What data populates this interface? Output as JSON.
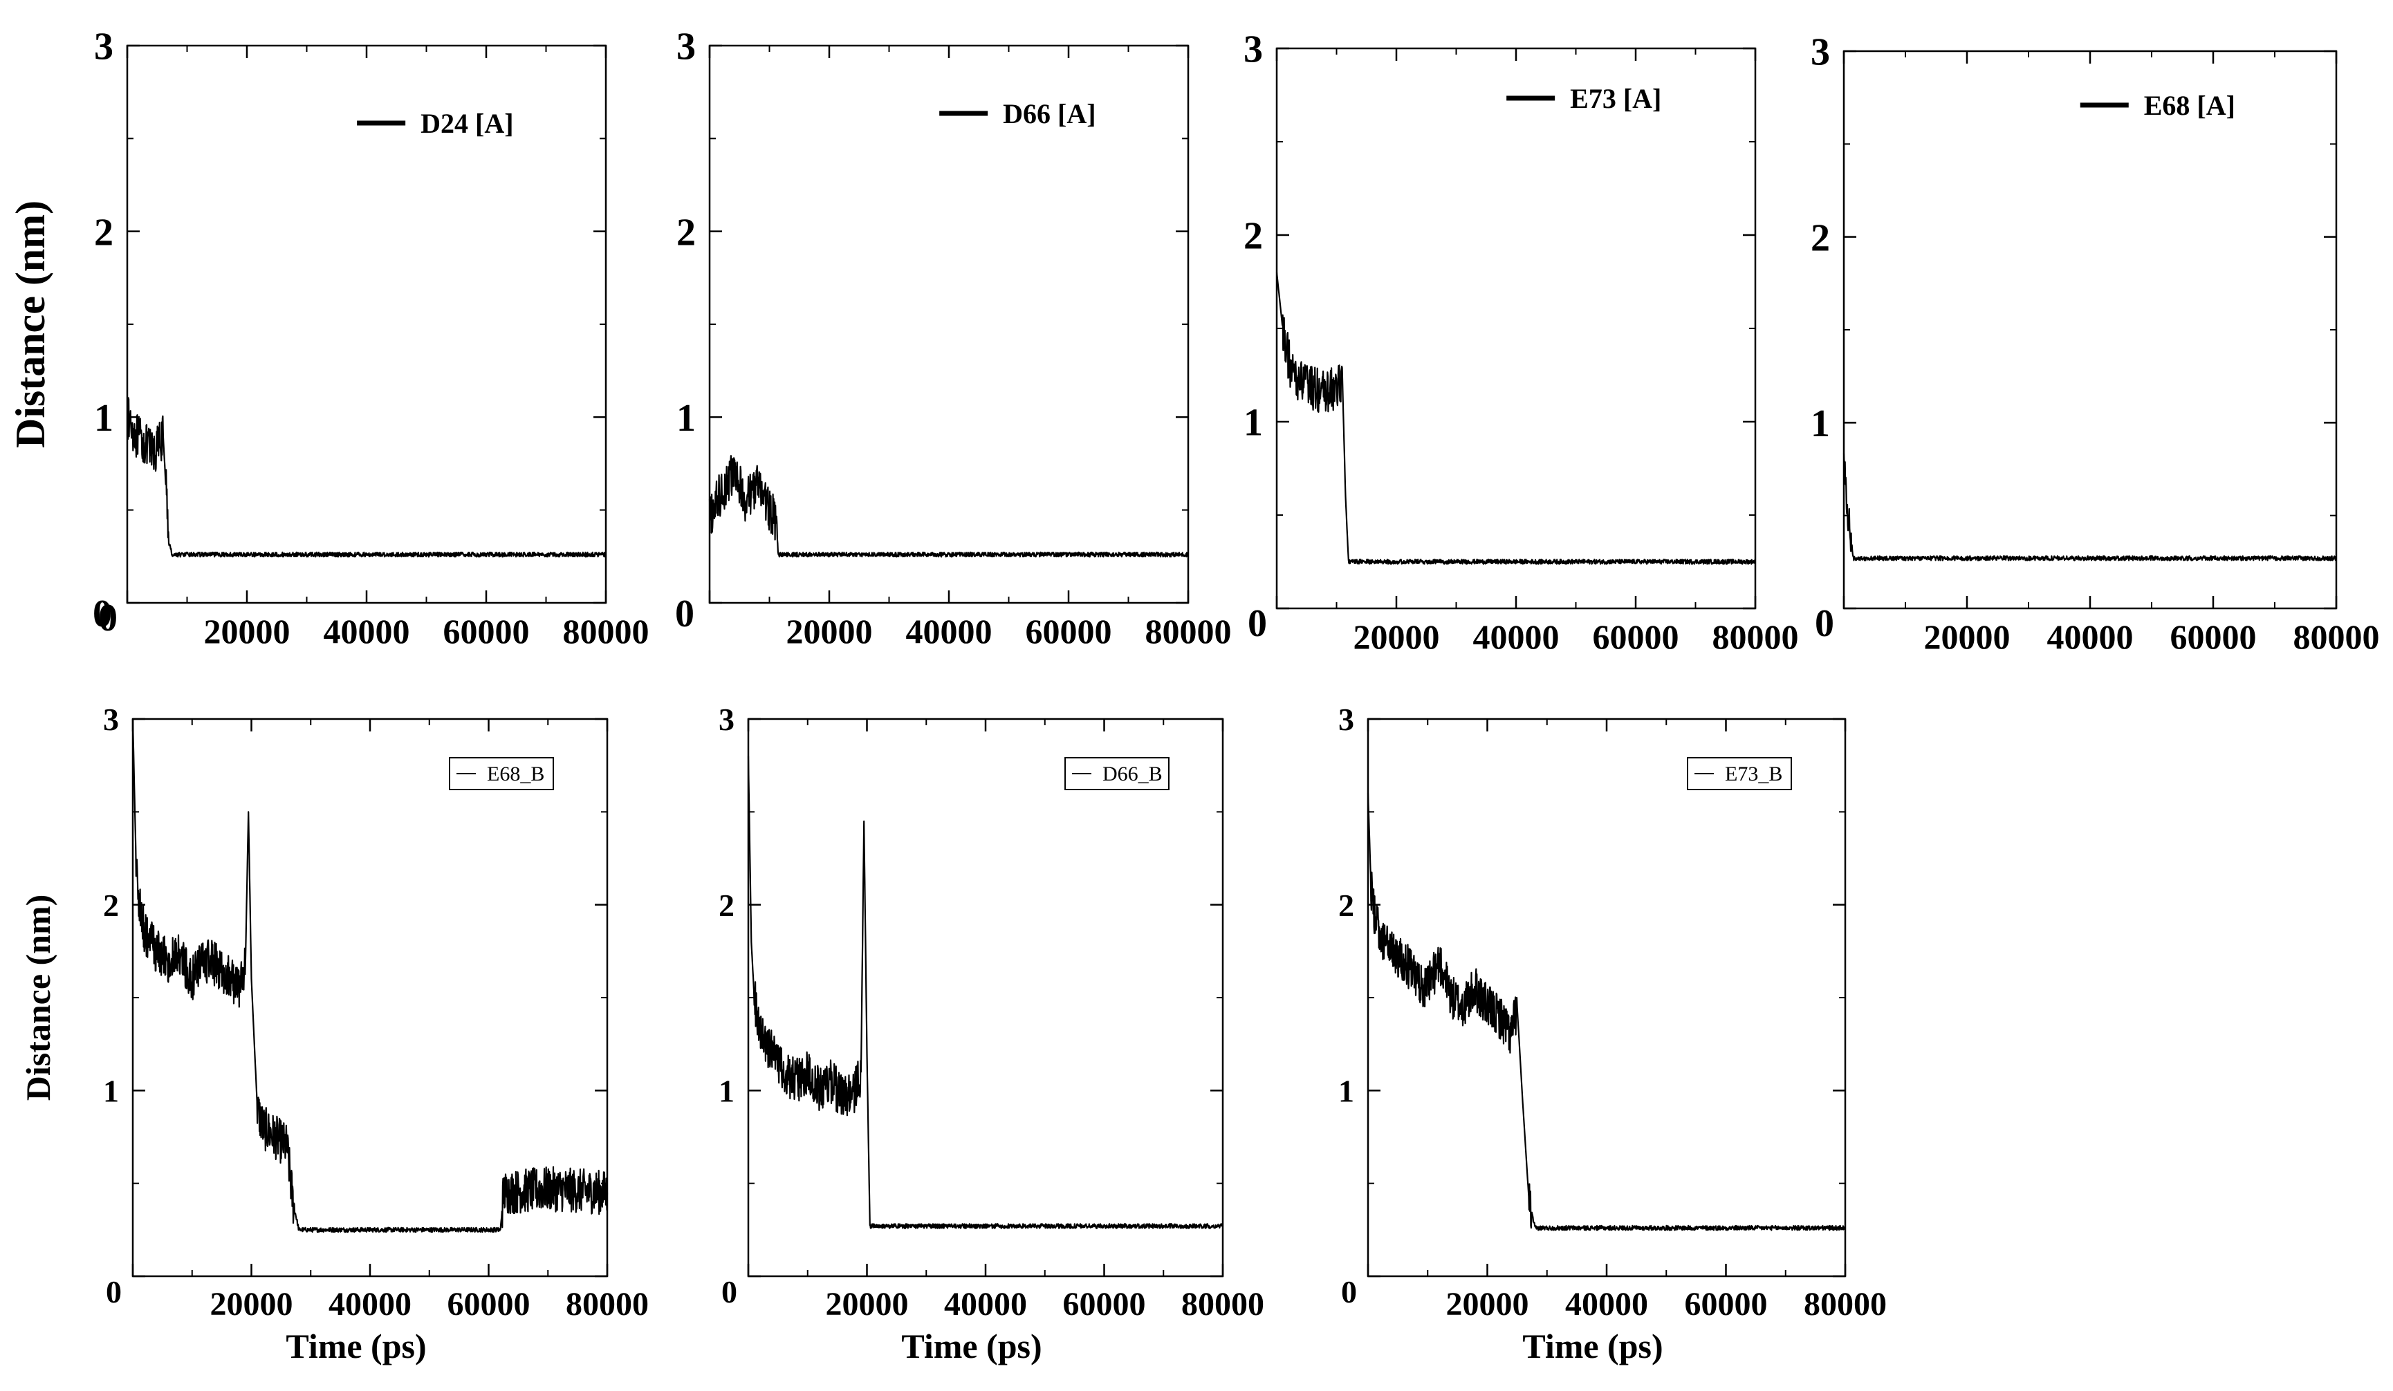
{
  "chart_data": [
    {
      "type": "line",
      "row": "top",
      "col": 1,
      "xlabel": "",
      "ylabel": "Distance (nm)",
      "xlim": [
        0,
        80000
      ],
      "ylim": [
        0,
        3
      ],
      "xticks": [
        20000,
        40000,
        60000,
        80000
      ],
      "yticks": [
        1,
        2,
        3
      ],
      "x0_label": "0",
      "y0_label": "0",
      "legend": "top-right",
      "legend_style": "bold",
      "series": [
        {
          "name": "D24 [A]",
          "color": "#000000",
          "x": [
            0,
            1500,
            3000,
            4500,
            6000,
            6500,
            7000,
            7500,
            20000,
            40000,
            60000,
            80000
          ],
          "y": [
            1.0,
            0.9,
            0.85,
            0.8,
            0.9,
            0.6,
            0.32,
            0.26,
            0.26,
            0.26,
            0.26,
            0.26
          ]
        }
      ]
    },
    {
      "type": "line",
      "row": "top",
      "col": 2,
      "xlabel": "",
      "ylabel": "",
      "xlim": [
        0,
        80000
      ],
      "ylim": [
        0,
        3
      ],
      "xticks": [
        20000,
        40000,
        60000,
        80000
      ],
      "yticks": [
        1,
        2,
        3
      ],
      "x0_label": "",
      "y0_label": "0",
      "legend": "top-right",
      "legend_style": "bold",
      "series": [
        {
          "name": "D66 [A]",
          "color": "#000000",
          "x": [
            0,
            2000,
            4000,
            6000,
            8000,
            10000,
            11000,
            11500,
            20000,
            40000,
            60000,
            80000
          ],
          "y": [
            0.45,
            0.6,
            0.7,
            0.55,
            0.65,
            0.5,
            0.45,
            0.26,
            0.26,
            0.26,
            0.26,
            0.26
          ]
        }
      ]
    },
    {
      "type": "line",
      "row": "top",
      "col": 3,
      "xlabel": "",
      "ylabel": "",
      "xlim": [
        0,
        80000
      ],
      "ylim": [
        0,
        3
      ],
      "xticks": [
        20000,
        40000,
        60000,
        80000
      ],
      "yticks": [
        1,
        2,
        3
      ],
      "x0_label": "0",
      "y0_label": "",
      "legend": "top-right",
      "legend_style": "bold",
      "series": [
        {
          "name": "E73 [A]",
          "color": "#000000",
          "x": [
            0,
            1000,
            2500,
            5000,
            8000,
            11000,
            11500,
            12000,
            20000,
            40000,
            60000,
            80000
          ],
          "y": [
            1.8,
            1.5,
            1.25,
            1.2,
            1.15,
            1.2,
            0.6,
            0.25,
            0.25,
            0.25,
            0.25,
            0.25
          ]
        }
      ]
    },
    {
      "type": "line",
      "row": "top",
      "col": 4,
      "xlabel": "",
      "ylabel": "",
      "xlim": [
        0,
        80000
      ],
      "ylim": [
        0,
        3
      ],
      "xticks": [
        20000,
        40000,
        60000,
        80000
      ],
      "yticks": [
        1,
        2,
        3
      ],
      "x0_label": "0",
      "y0_label": "",
      "legend": "top-right",
      "legend_style": "bold",
      "series": [
        {
          "name": "E68 [A]",
          "color": "#000000",
          "x": [
            0,
            500,
            1000,
            1500,
            20000,
            40000,
            60000,
            80000
          ],
          "y": [
            0.8,
            0.55,
            0.45,
            0.27,
            0.27,
            0.27,
            0.27,
            0.27
          ]
        }
      ]
    },
    {
      "type": "line",
      "row": "bottom",
      "col": 1,
      "xlabel": "Time (ps)",
      "ylabel": "Distance (nm)",
      "xlim": [
        0,
        80000
      ],
      "ylim": [
        0,
        3
      ],
      "xticks": [
        20000,
        40000,
        60000,
        80000
      ],
      "yticks": [
        1,
        2,
        3
      ],
      "x0_label": "0",
      "y0_label": "",
      "legend": "top-right",
      "legend_style": "boxed",
      "series": [
        {
          "name": "E68_B",
          "color": "#000000",
          "x": [
            0,
            500,
            1000,
            2000,
            4000,
            6000,
            8000,
            10000,
            12000,
            14000,
            16000,
            18000,
            19000,
            19500,
            20000,
            21000,
            22000,
            24000,
            26000,
            27000,
            28000,
            40000,
            62000,
            62500,
            70000,
            80000
          ],
          "y": [
            3.0,
            2.3,
            2.0,
            1.85,
            1.75,
            1.7,
            1.72,
            1.6,
            1.7,
            1.68,
            1.62,
            1.55,
            1.7,
            2.5,
            1.6,
            0.9,
            0.8,
            0.75,
            0.7,
            0.4,
            0.25,
            0.25,
            0.25,
            0.45,
            0.47,
            0.45
          ]
        }
      ]
    },
    {
      "type": "line",
      "row": "bottom",
      "col": 2,
      "xlabel": "Time (ps)",
      "ylabel": "",
      "xlim": [
        0,
        80000
      ],
      "ylim": [
        0,
        3
      ],
      "xticks": [
        20000,
        40000,
        60000,
        80000
      ],
      "yticks": [
        1,
        2,
        3
      ],
      "x0_label": "0",
      "y0_label": "",
      "legend": "top-right",
      "legend_style": "boxed",
      "series": [
        {
          "name": "D66_B",
          "color": "#000000",
          "x": [
            0,
            500,
            1000,
            2000,
            4000,
            6000,
            8000,
            10000,
            12000,
            14000,
            16000,
            18000,
            19000,
            19500,
            20000,
            20500,
            40000,
            60000,
            80000
          ],
          "y": [
            2.8,
            1.8,
            1.5,
            1.3,
            1.2,
            1.1,
            1.05,
            1.1,
            1.0,
            1.05,
            0.95,
            1.0,
            1.1,
            2.45,
            1.2,
            0.27,
            0.27,
            0.27,
            0.27
          ]
        }
      ]
    },
    {
      "type": "line",
      "row": "bottom",
      "col": 3,
      "xlabel": "Time (ps)",
      "ylabel": "",
      "xlim": [
        0,
        80000
      ],
      "ylim": [
        0,
        3
      ],
      "xticks": [
        20000,
        40000,
        60000,
        80000
      ],
      "yticks": [
        1,
        2,
        3
      ],
      "x0_label": "0",
      "y0_label": "",
      "legend": "top-right",
      "legend_style": "boxed",
      "series": [
        {
          "name": "E73_B",
          "color": "#000000",
          "x": [
            0,
            500,
            1000,
            2000,
            4000,
            6000,
            8000,
            10000,
            12000,
            14000,
            16000,
            18000,
            20000,
            22000,
            24000,
            25000,
            26000,
            27000,
            28000,
            40000,
            60000,
            80000
          ],
          "y": [
            2.6,
            2.1,
            1.95,
            1.85,
            1.75,
            1.7,
            1.6,
            1.55,
            1.7,
            1.5,
            1.45,
            1.55,
            1.45,
            1.4,
            1.3,
            1.45,
            0.9,
            0.4,
            0.26,
            0.26,
            0.26,
            0.26
          ]
        }
      ]
    }
  ]
}
